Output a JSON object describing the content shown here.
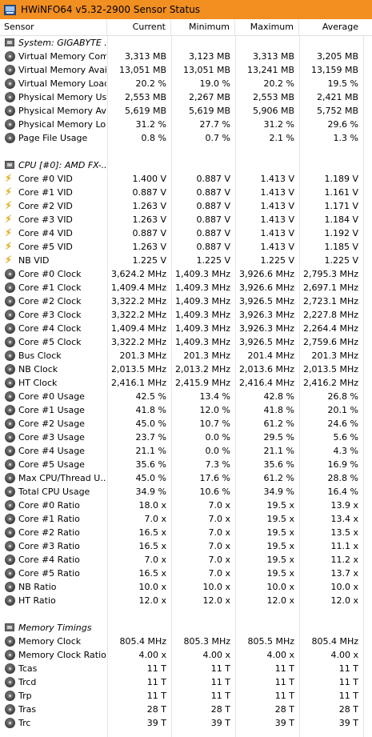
{
  "window": {
    "title": "HWiNFO64 v5.32-2900 Sensor Status",
    "accent": "#f28f21"
  },
  "columns": [
    "Sensor",
    "Current",
    "Minimum",
    "Maximum",
    "Average"
  ],
  "rows": [
    {
      "type": "group",
      "icon": "chip",
      "name": "System: GIGABYTE ..."
    },
    {
      "icon": "gauge",
      "name": "Virtual Memory Com...",
      "v": [
        "3,313 MB",
        "3,123 MB",
        "3,313 MB",
        "3,205 MB"
      ]
    },
    {
      "icon": "gauge",
      "name": "Virtual Memory Avai...",
      "v": [
        "13,051 MB",
        "13,051 MB",
        "13,241 MB",
        "13,159 MB"
      ]
    },
    {
      "icon": "gauge",
      "name": "Virtual Memory Load",
      "v": [
        "20.2 %",
        "19.0 %",
        "20.2 %",
        "19.5 %"
      ]
    },
    {
      "icon": "gauge",
      "name": "Physical Memory Used",
      "v": [
        "2,553 MB",
        "2,267 MB",
        "2,553 MB",
        "2,421 MB"
      ]
    },
    {
      "icon": "gauge",
      "name": "Physical Memory Av...",
      "v": [
        "5,619 MB",
        "5,619 MB",
        "5,906 MB",
        "5,752 MB"
      ]
    },
    {
      "icon": "gauge",
      "name": "Physical Memory Load",
      "v": [
        "31.2 %",
        "27.7 %",
        "31.2 %",
        "29.6 %"
      ]
    },
    {
      "icon": "gauge",
      "name": "Page File Usage",
      "v": [
        "0.8 %",
        "0.7 %",
        "2.1 %",
        "1.3 %"
      ]
    },
    {
      "type": "blank"
    },
    {
      "type": "group",
      "icon": "chip",
      "name": "CPU [#0]: AMD FX-..."
    },
    {
      "icon": "bolt",
      "name": "Core #0 VID",
      "v": [
        "1.400 V",
        "0.887 V",
        "1.413 V",
        "1.189 V"
      ]
    },
    {
      "icon": "bolt",
      "name": "Core #1 VID",
      "v": [
        "0.887 V",
        "0.887 V",
        "1.413 V",
        "1.161 V"
      ]
    },
    {
      "icon": "bolt",
      "name": "Core #2 VID",
      "v": [
        "1.263 V",
        "0.887 V",
        "1.413 V",
        "1.171 V"
      ]
    },
    {
      "icon": "bolt",
      "name": "Core #3 VID",
      "v": [
        "1.263 V",
        "0.887 V",
        "1.413 V",
        "1.184 V"
      ]
    },
    {
      "icon": "bolt",
      "name": "Core #4 VID",
      "v": [
        "0.887 V",
        "0.887 V",
        "1.413 V",
        "1.192 V"
      ]
    },
    {
      "icon": "bolt",
      "name": "Core #5 VID",
      "v": [
        "1.263 V",
        "0.887 V",
        "1.413 V",
        "1.185 V"
      ]
    },
    {
      "icon": "bolt",
      "name": "NB VID",
      "v": [
        "1.225 V",
        "1.225 V",
        "1.225 V",
        "1.225 V"
      ]
    },
    {
      "icon": "gauge",
      "name": "Core #0 Clock",
      "v": [
        "3,624.2 MHz",
        "1,409.3 MHz",
        "3,926.6 MHz",
        "2,795.3 MHz"
      ]
    },
    {
      "icon": "gauge",
      "name": "Core #1 Clock",
      "v": [
        "1,409.4 MHz",
        "1,409.3 MHz",
        "3,926.6 MHz",
        "2,697.1 MHz"
      ]
    },
    {
      "icon": "gauge",
      "name": "Core #2 Clock",
      "v": [
        "3,322.2 MHz",
        "1,409.3 MHz",
        "3,926.5 MHz",
        "2,723.1 MHz"
      ]
    },
    {
      "icon": "gauge",
      "name": "Core #3 Clock",
      "v": [
        "3,322.2 MHz",
        "1,409.3 MHz",
        "3,926.3 MHz",
        "2,227.8 MHz"
      ]
    },
    {
      "icon": "gauge",
      "name": "Core #4 Clock",
      "v": [
        "1,409.4 MHz",
        "1,409.3 MHz",
        "3,926.3 MHz",
        "2,264.4 MHz"
      ]
    },
    {
      "icon": "gauge",
      "name": "Core #5 Clock",
      "v": [
        "3,322.2 MHz",
        "1,409.3 MHz",
        "3,926.5 MHz",
        "2,759.6 MHz"
      ]
    },
    {
      "icon": "gauge",
      "name": "Bus Clock",
      "v": [
        "201.3 MHz",
        "201.3 MHz",
        "201.4 MHz",
        "201.3 MHz"
      ]
    },
    {
      "icon": "gauge",
      "name": "NB Clock",
      "v": [
        "2,013.5 MHz",
        "2,013.2 MHz",
        "2,013.6 MHz",
        "2,013.5 MHz"
      ]
    },
    {
      "icon": "gauge",
      "name": "HT Clock",
      "v": [
        "2,416.1 MHz",
        "2,415.9 MHz",
        "2,416.4 MHz",
        "2,416.2 MHz"
      ]
    },
    {
      "icon": "gauge",
      "name": "Core #0 Usage",
      "v": [
        "42.5 %",
        "13.4 %",
        "42.8 %",
        "26.8 %"
      ]
    },
    {
      "icon": "gauge",
      "name": "Core #1 Usage",
      "v": [
        "41.8 %",
        "12.0 %",
        "41.8 %",
        "20.1 %"
      ]
    },
    {
      "icon": "gauge",
      "name": "Core #2 Usage",
      "v": [
        "45.0 %",
        "10.7 %",
        "61.2 %",
        "24.6 %"
      ]
    },
    {
      "icon": "gauge",
      "name": "Core #3 Usage",
      "v": [
        "23.7 %",
        "0.0 %",
        "29.5 %",
        "5.6 %"
      ]
    },
    {
      "icon": "gauge",
      "name": "Core #4 Usage",
      "v": [
        "21.1 %",
        "0.0 %",
        "21.1 %",
        "4.3 %"
      ]
    },
    {
      "icon": "gauge",
      "name": "Core #5 Usage",
      "v": [
        "35.6 %",
        "7.3 %",
        "35.6 %",
        "16.9 %"
      ]
    },
    {
      "icon": "gauge",
      "name": "Max CPU/Thread U...",
      "v": [
        "45.0 %",
        "17.6 %",
        "61.2 %",
        "28.8 %"
      ]
    },
    {
      "icon": "gauge",
      "name": "Total CPU Usage",
      "v": [
        "34.9 %",
        "10.6 %",
        "34.9 %",
        "16.4 %"
      ]
    },
    {
      "icon": "gauge",
      "name": "Core #0 Ratio",
      "v": [
        "18.0 x",
        "7.0 x",
        "19.5 x",
        "13.9 x"
      ]
    },
    {
      "icon": "gauge",
      "name": "Core #1 Ratio",
      "v": [
        "7.0 x",
        "7.0 x",
        "19.5 x",
        "13.4 x"
      ]
    },
    {
      "icon": "gauge",
      "name": "Core #2 Ratio",
      "v": [
        "16.5 x",
        "7.0 x",
        "19.5 x",
        "13.5 x"
      ]
    },
    {
      "icon": "gauge",
      "name": "Core #3 Ratio",
      "v": [
        "16.5 x",
        "7.0 x",
        "19.5 x",
        "11.1 x"
      ]
    },
    {
      "icon": "gauge",
      "name": "Core #4 Ratio",
      "v": [
        "7.0 x",
        "7.0 x",
        "19.5 x",
        "11.2 x"
      ]
    },
    {
      "icon": "gauge",
      "name": "Core #5 Ratio",
      "v": [
        "16.5 x",
        "7.0 x",
        "19.5 x",
        "13.7 x"
      ]
    },
    {
      "icon": "gauge",
      "name": "NB Ratio",
      "v": [
        "10.0 x",
        "10.0 x",
        "10.0 x",
        "10.0 x"
      ]
    },
    {
      "icon": "gauge",
      "name": "HT Ratio",
      "v": [
        "12.0 x",
        "12.0 x",
        "12.0 x",
        "12.0 x"
      ]
    },
    {
      "type": "blank"
    },
    {
      "type": "group",
      "icon": "chip",
      "name": "Memory Timings"
    },
    {
      "icon": "gauge",
      "name": "Memory Clock",
      "v": [
        "805.4 MHz",
        "805.3 MHz",
        "805.5 MHz",
        "805.4 MHz"
      ]
    },
    {
      "icon": "gauge",
      "name": "Memory Clock Ratio",
      "v": [
        "4.00 x",
        "4.00 x",
        "4.00 x",
        "4.00 x"
      ]
    },
    {
      "icon": "gauge",
      "name": "Tcas",
      "v": [
        "11 T",
        "11 T",
        "11 T",
        "11 T"
      ]
    },
    {
      "icon": "gauge",
      "name": "Trcd",
      "v": [
        "11 T",
        "11 T",
        "11 T",
        "11 T"
      ]
    },
    {
      "icon": "gauge",
      "name": "Trp",
      "v": [
        "11 T",
        "11 T",
        "11 T",
        "11 T"
      ]
    },
    {
      "icon": "gauge",
      "name": "Tras",
      "v": [
        "28 T",
        "28 T",
        "28 T",
        "28 T"
      ]
    },
    {
      "icon": "gauge",
      "name": "Trc",
      "v": [
        "39 T",
        "39 T",
        "39 T",
        "39 T"
      ]
    }
  ]
}
